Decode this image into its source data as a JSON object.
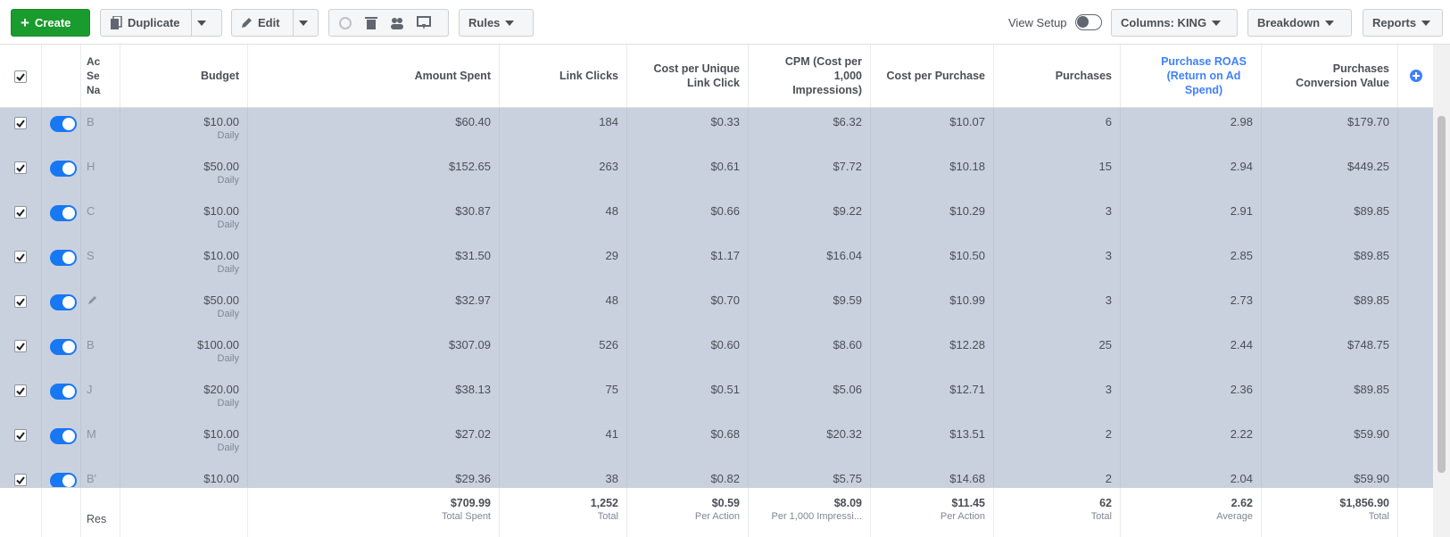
{
  "toolbar": {
    "create": "Create",
    "duplicate": "Duplicate",
    "edit": "Edit",
    "rules": "Rules",
    "view_setup": "View Setup",
    "columns": "Columns: KING",
    "breakdown": "Breakdown",
    "reports": "Reports"
  },
  "table": {
    "headers": {
      "name": [
        "Ac",
        "Se",
        "Na"
      ],
      "budget": "Budget",
      "spent": "Amount Spent",
      "clicks": "Link Clicks",
      "cpc": "Cost per Unique Link Click",
      "cpm": "CPM (Cost per 1,000 Impressions)",
      "cpp": "Cost per Purchase",
      "purchases": "Purchases",
      "roas": "Purchase ROAS (Return on Ad Spend)",
      "value": "Purchases Conversion Value"
    },
    "rows": [
      {
        "name": "B",
        "budget": "$10.00",
        "budget_type": "Daily",
        "spent": "$60.40",
        "clicks": "184",
        "cpc": "$0.33",
        "cpm": "$6.32",
        "cpp": "$10.07",
        "purchases": "6",
        "roas": "2.98",
        "value": "$179.70"
      },
      {
        "name": "H",
        "budget": "$50.00",
        "budget_type": "Daily",
        "spent": "$152.65",
        "clicks": "263",
        "cpc": "$0.61",
        "cpm": "$7.72",
        "cpp": "$10.18",
        "purchases": "15",
        "roas": "2.94",
        "value": "$449.25"
      },
      {
        "name": "C",
        "budget": "$10.00",
        "budget_type": "Daily",
        "spent": "$30.87",
        "clicks": "48",
        "cpc": "$0.66",
        "cpm": "$9.22",
        "cpp": "$10.29",
        "purchases": "3",
        "roas": "2.91",
        "value": "$89.85"
      },
      {
        "name": "S",
        "budget": "$10.00",
        "budget_type": "Daily",
        "spent": "$31.50",
        "clicks": "29",
        "cpc": "$1.17",
        "cpm": "$16.04",
        "cpp": "$10.50",
        "purchases": "3",
        "roas": "2.85",
        "value": "$89.85"
      },
      {
        "budget": "$50.00",
        "budget_type": "Daily",
        "spent": "$32.97",
        "clicks": "48",
        "cpc": "$0.70",
        "cpm": "$9.59",
        "cpp": "$10.99",
        "purchases": "3",
        "roas": "2.73",
        "value": "$89.85"
      },
      {
        "name": "B",
        "budget": "$100.00",
        "budget_type": "Daily",
        "spent": "$307.09",
        "clicks": "526",
        "cpc": "$0.60",
        "cpm": "$8.60",
        "cpp": "$12.28",
        "purchases": "25",
        "roas": "2.44",
        "value": "$748.75"
      },
      {
        "name": "J",
        "budget": "$20.00",
        "budget_type": "Daily",
        "spent": "$38.13",
        "clicks": "75",
        "cpc": "$0.51",
        "cpm": "$5.06",
        "cpp": "$12.71",
        "purchases": "3",
        "roas": "2.36",
        "value": "$89.85"
      },
      {
        "name": "M",
        "budget": "$10.00",
        "budget_type": "Daily",
        "spent": "$27.02",
        "clicks": "41",
        "cpc": "$0.68",
        "cpm": "$20.32",
        "cpp": "$13.51",
        "purchases": "2",
        "roas": "2.22",
        "value": "$59.90"
      },
      {
        "name": "B'",
        "budget": "$10.00",
        "spent": "$29.36",
        "clicks": "38",
        "cpc": "$0.82",
        "cpm": "$5.75",
        "cpp": "$14.68",
        "purchases": "2",
        "roas": "2.04",
        "value": "$59.90"
      }
    ],
    "footer": {
      "name": "Res",
      "spent": {
        "value": "$709.99",
        "label": "Total Spent"
      },
      "clicks": {
        "value": "1,252",
        "label": "Total"
      },
      "cpc": {
        "value": "$0.59",
        "label": "Per Action"
      },
      "cpm": {
        "value": "$8.09",
        "label": "Per 1,000 Impressi..."
      },
      "cpp": {
        "value": "$11.45",
        "label": "Per Action"
      },
      "purchases": {
        "value": "62",
        "label": "Total"
      },
      "roas": {
        "value": "2.62",
        "label": "Average"
      },
      "value": {
        "value": "$1,856.90",
        "label": "Total"
      }
    }
  }
}
